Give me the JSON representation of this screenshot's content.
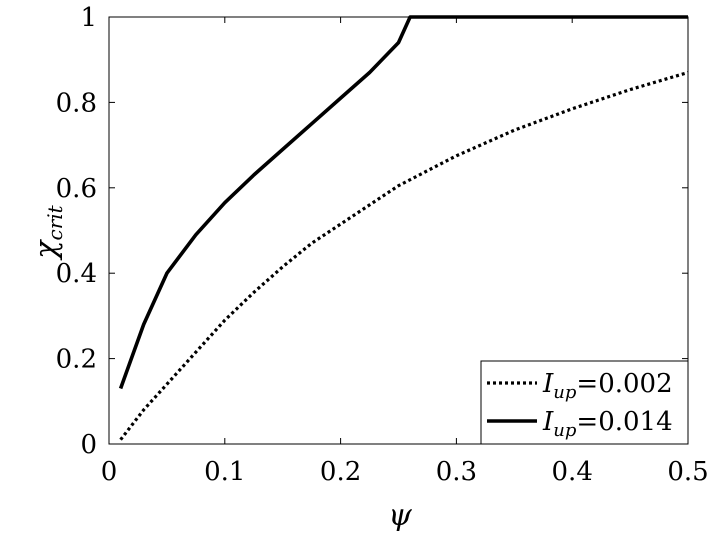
{
  "chart_data": {
    "type": "line",
    "xlabel": "ψ",
    "ylabel": {
      "symbol": "χ",
      "subscript": "crit"
    },
    "xlim": [
      0,
      0.5
    ],
    "ylim": [
      0,
      1
    ],
    "xticks": [
      "0",
      "0.1",
      "0.2",
      "0.3",
      "0.4",
      "0.5"
    ],
    "yticks": [
      "0",
      "0.2",
      "0.4",
      "0.6",
      "0.8",
      "1"
    ],
    "grid": false,
    "legend_position": "bottom-right",
    "series": [
      {
        "name": "I_up=0.002",
        "legend": {
          "symbol": "I",
          "subscript": "up",
          "value": "=0.002"
        },
        "style": "dotted",
        "color": "#000000",
        "x": [
          0.01,
          0.03,
          0.05,
          0.075,
          0.1,
          0.125,
          0.15,
          0.175,
          0.2,
          0.25,
          0.3,
          0.35,
          0.4,
          0.45,
          0.5
        ],
        "y": [
          0.01,
          0.08,
          0.14,
          0.215,
          0.29,
          0.355,
          0.415,
          0.47,
          0.515,
          0.605,
          0.675,
          0.735,
          0.785,
          0.83,
          0.87
        ]
      },
      {
        "name": "I_up=0.014",
        "legend": {
          "symbol": "I",
          "subscript": "up",
          "value": "=0.014"
        },
        "style": "solid",
        "color": "#000000",
        "x": [
          0.01,
          0.03,
          0.05,
          0.075,
          0.1,
          0.125,
          0.15,
          0.175,
          0.2,
          0.225,
          0.25,
          0.26,
          0.3,
          0.4,
          0.5
        ],
        "y": [
          0.13,
          0.28,
          0.4,
          0.49,
          0.565,
          0.63,
          0.69,
          0.75,
          0.81,
          0.87,
          0.94,
          1.0,
          1.0,
          1.0,
          1.0
        ]
      }
    ]
  }
}
